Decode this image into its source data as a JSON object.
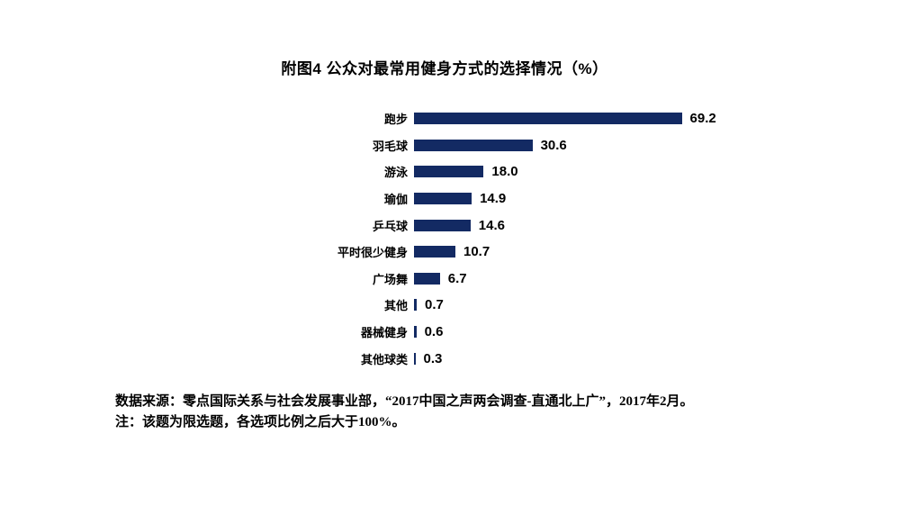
{
  "title": "附图4 公众对最常用健身方式的选择情况（%）",
  "chart_data": {
    "type": "bar",
    "orientation": "horizontal",
    "title": "附图4 公众对最常用健身方式的选择情况（%）",
    "categories": [
      "跑步",
      "羽毛球",
      "游泳",
      "瑜伽",
      "乒乓球",
      "平时很少健身",
      "广场舞",
      "其他",
      "器械健身",
      "其他球类"
    ],
    "values": [
      69.2,
      30.6,
      18.0,
      14.9,
      14.6,
      10.7,
      6.7,
      0.7,
      0.6,
      0.3
    ],
    "value_labels": [
      "69.2",
      "30.6",
      "18.0",
      "14.9",
      "14.6",
      "10.7",
      "6.7",
      "0.7",
      "0.6",
      "0.3"
    ],
    "xlabel": "",
    "ylabel": "",
    "xlim": [
      0,
      75
    ],
    "grid": false,
    "legend": "none",
    "bar_color": "#132a63",
    "value_label_color": "#000000"
  },
  "footer": {
    "source": "数据来源：零点国际关系与社会发展事业部，“2017中国之声两会调查-直通北上广”，2017年2月。",
    "note": "注：该题为限选题，各选项比例之后大于100%。"
  }
}
